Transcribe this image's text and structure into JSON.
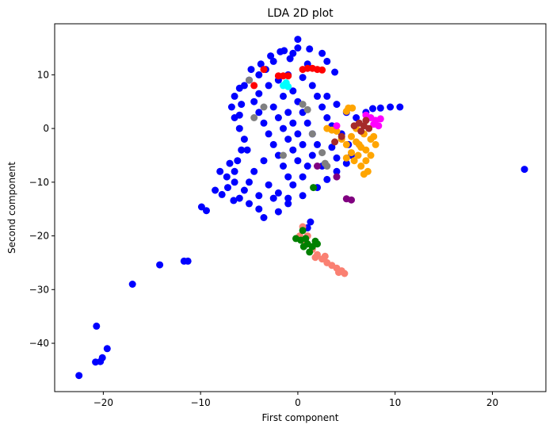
{
  "chart_data": {
    "type": "scatter",
    "title": "LDA 2D plot",
    "xlabel": "First component",
    "ylabel": "Second component",
    "xlim": [
      -25,
      25.5
    ],
    "ylim": [
      -49,
      19.5
    ],
    "xticks": [
      -20,
      -10,
      0,
      10,
      20
    ],
    "xtick_labels": [
      "−20",
      "−10",
      "0",
      "10",
      "20"
    ],
    "yticks": [
      -40,
      -30,
      -20,
      -10,
      0,
      10
    ],
    "ytick_labels": [
      "−40",
      "−30",
      "−20",
      "−10",
      "0",
      "10"
    ],
    "grid": false,
    "legend": "none",
    "series": [
      {
        "color": "#0000ff",
        "points": [
          [
            -22.5,
            -46.0
          ],
          [
            -20.8,
            -43.5
          ],
          [
            -20.3,
            -43.4
          ],
          [
            -20.1,
            -42.7
          ],
          [
            -19.6,
            -41.0
          ],
          [
            -20.7,
            -36.8
          ],
          [
            -17.0,
            -29.0
          ],
          [
            -14.2,
            -25.4
          ],
          [
            -11.7,
            -24.7
          ],
          [
            -11.3,
            -24.7
          ],
          [
            -9.9,
            -14.6
          ],
          [
            -9.4,
            -15.3
          ],
          [
            -8.5,
            -11.5
          ],
          [
            -7.8,
            -12.3
          ],
          [
            -7.2,
            -11.0
          ],
          [
            -6.6,
            -13.4
          ],
          [
            -6.0,
            -13.0
          ],
          [
            -5.0,
            -14.0
          ],
          [
            -4.0,
            -15.0
          ],
          [
            -3.5,
            -16.6
          ],
          [
            -2.0,
            -15.5
          ],
          [
            -1.0,
            -14.0
          ],
          [
            1.3,
            -17.4
          ],
          [
            1.0,
            -18.5
          ],
          [
            23.3,
            -7.6
          ],
          [
            10.5,
            4.0
          ],
          [
            9.5,
            4.0
          ],
          [
            8.5,
            3.8
          ],
          [
            7.7,
            3.7
          ],
          [
            0.0,
            16.6
          ],
          [
            0.0,
            15.0
          ],
          [
            -0.5,
            14.0
          ],
          [
            1.2,
            14.8
          ],
          [
            -1.4,
            14.5
          ],
          [
            2.5,
            14.0
          ],
          [
            -2.5,
            12.5
          ],
          [
            -3.3,
            11.0
          ],
          [
            -4.0,
            10.0
          ],
          [
            -5.0,
            9.0
          ],
          [
            -6.0,
            7.5
          ],
          [
            -6.5,
            6.0
          ],
          [
            -6.8,
            4.0
          ],
          [
            -6.5,
            2.0
          ],
          [
            -6.0,
            0.0
          ],
          [
            -5.5,
            -2.0
          ],
          [
            -5.2,
            -4.0
          ],
          [
            -6.2,
            -6.0
          ],
          [
            -6.5,
            -8.0
          ],
          [
            -6.5,
            -10.0
          ],
          [
            -5.5,
            -11.5
          ],
          [
            -4.0,
            -12.5
          ],
          [
            -2.5,
            -13.0
          ],
          [
            -1.0,
            -13.0
          ],
          [
            0.5,
            -12.5
          ],
          [
            2.0,
            -11.0
          ],
          [
            3.0,
            -9.5
          ],
          [
            4.0,
            -8.0
          ],
          [
            5.0,
            -6.5
          ],
          [
            5.5,
            -5.0
          ],
          [
            5.2,
            -3.0
          ],
          [
            4.5,
            -1.0
          ],
          [
            3.5,
            0.5
          ],
          [
            3.0,
            2.0
          ],
          [
            2.5,
            4.0
          ],
          [
            2.0,
            6.0
          ],
          [
            1.5,
            8.0
          ],
          [
            0.5,
            9.5
          ],
          [
            -1.0,
            10.0
          ],
          [
            -2.0,
            9.0
          ],
          [
            -3.0,
            8.0
          ],
          [
            -4.0,
            6.5
          ],
          [
            -4.5,
            5.0
          ],
          [
            -4.0,
            3.0
          ],
          [
            -3.5,
            1.0
          ],
          [
            -3.0,
            -1.0
          ],
          [
            -2.5,
            -3.0
          ],
          [
            -2.0,
            -5.0
          ],
          [
            -1.5,
            -7.0
          ],
          [
            -1.0,
            -9.0
          ],
          [
            -0.5,
            -10.5
          ],
          [
            0.5,
            -9.0
          ],
          [
            1.0,
            -7.0
          ],
          [
            1.5,
            -5.0
          ],
          [
            2.0,
            -3.0
          ],
          [
            1.5,
            -1.0
          ],
          [
            1.0,
            1.0
          ],
          [
            0.5,
            3.0
          ],
          [
            0.0,
            5.0
          ],
          [
            -0.5,
            7.0
          ],
          [
            -1.5,
            6.0
          ],
          [
            -2.5,
            4.0
          ],
          [
            -2.0,
            2.0
          ],
          [
            -1.5,
            0.0
          ],
          [
            -1.0,
            -2.0
          ],
          [
            -0.5,
            -4.0
          ],
          [
            0.0,
            -6.0
          ],
          [
            0.5,
            -3.0
          ],
          [
            0.0,
            -1.0
          ],
          [
            -0.5,
            1.0
          ],
          [
            -1.0,
            3.0
          ],
          [
            -3.5,
            -6.0
          ],
          [
            -4.5,
            -8.0
          ],
          [
            -5.0,
            -10.0
          ],
          [
            -3.0,
            -10.5
          ],
          [
            -2.0,
            -12.0
          ],
          [
            3.5,
            -3.5
          ],
          [
            4.0,
            -5.5
          ],
          [
            2.5,
            -7.0
          ],
          [
            3.0,
            6.0
          ],
          [
            4.0,
            4.5
          ],
          [
            5.0,
            3.0
          ],
          [
            6.0,
            2.0
          ],
          [
            7.0,
            3.0
          ],
          [
            -5.5,
            8.0
          ],
          [
            -4.8,
            11.0
          ],
          [
            -3.8,
            12.0
          ],
          [
            -2.8,
            13.5
          ],
          [
            -1.8,
            14.3
          ],
          [
            -0.8,
            13.0
          ],
          [
            3.8,
            10.5
          ],
          [
            3.0,
            12.5
          ],
          [
            1.0,
            12.0
          ],
          [
            -5.8,
            4.5
          ],
          [
            -5.8,
            -4.0
          ],
          [
            -7.0,
            -6.5
          ],
          [
            -7.3,
            -9.0
          ],
          [
            -8.0,
            -8.0
          ],
          [
            -6.0,
            2.5
          ]
        ]
      },
      {
        "color": "#ffa500",
        "points": [
          [
            5.5,
            -1.5
          ],
          [
            6.0,
            -2.5
          ],
          [
            6.5,
            -3.5
          ],
          [
            7.0,
            -4.0
          ],
          [
            7.5,
            -2.0
          ],
          [
            6.8,
            -1.0
          ],
          [
            6.2,
            -5.0
          ],
          [
            5.8,
            -6.0
          ],
          [
            6.5,
            -7.0
          ],
          [
            7.0,
            -6.0
          ],
          [
            7.5,
            -5.0
          ],
          [
            5.5,
            -4.5
          ],
          [
            5.0,
            -3.0
          ],
          [
            4.5,
            -2.0
          ],
          [
            4.0,
            -0.5
          ],
          [
            3.5,
            -0.3
          ],
          [
            7.2,
            -8.0
          ],
          [
            6.8,
            -8.5
          ],
          [
            8.0,
            -3.0
          ],
          [
            7.8,
            -1.5
          ],
          [
            6.0,
            0.0
          ],
          [
            5.2,
            3.8
          ],
          [
            5.6,
            3.8
          ],
          [
            5.0,
            3.2
          ],
          [
            6.3,
            -3.0
          ],
          [
            5.0,
            -5.5
          ],
          [
            3.0,
            0.0
          ]
        ]
      },
      {
        "color": "#ff00ff",
        "points": [
          [
            7.5,
            2.0
          ],
          [
            8.0,
            1.5
          ],
          [
            8.3,
            0.5
          ],
          [
            7.8,
            0.8
          ],
          [
            7.0,
            2.5
          ],
          [
            8.5,
            1.8
          ],
          [
            4.0,
            0.5
          ]
        ]
      },
      {
        "color": "#a52a2a",
        "points": [
          [
            6.3,
            1.0
          ],
          [
            6.8,
            0.5
          ],
          [
            7.3,
            0.0
          ],
          [
            6.5,
            -0.5
          ],
          [
            5.8,
            0.5
          ],
          [
            7.0,
            1.5
          ],
          [
            4.5,
            -1.5
          ],
          [
            3.8,
            -2.5
          ]
        ]
      },
      {
        "color": "#800080",
        "points": [
          [
            5.5,
            -13.3
          ],
          [
            5.0,
            -13.1
          ],
          [
            4.0,
            -9.0
          ],
          [
            2.0,
            -7.0
          ]
        ]
      },
      {
        "color": "#fa8072",
        "points": [
          [
            0.5,
            -18.3
          ],
          [
            1.0,
            -20.0
          ],
          [
            1.5,
            -22.5
          ],
          [
            2.0,
            -23.5
          ],
          [
            2.5,
            -24.3
          ],
          [
            3.0,
            -25.0
          ],
          [
            3.5,
            -25.5
          ],
          [
            4.0,
            -26.0
          ],
          [
            4.5,
            -26.5
          ],
          [
            4.8,
            -27.0
          ],
          [
            4.2,
            -26.8
          ],
          [
            2.8,
            -23.8
          ],
          [
            1.8,
            -24.0
          ],
          [
            0.8,
            -21.0
          ],
          [
            0.2,
            -20.0
          ]
        ]
      },
      {
        "color": "#008000",
        "points": [
          [
            0.5,
            -19.0
          ],
          [
            0.8,
            -20.5
          ],
          [
            1.0,
            -21.5
          ],
          [
            1.5,
            -22.0
          ],
          [
            0.3,
            -20.8
          ],
          [
            1.8,
            -21.0
          ],
          [
            1.2,
            -23.0
          ],
          [
            0.6,
            -22.0
          ],
          [
            -0.2,
            -20.5
          ],
          [
            1.6,
            -11.0
          ],
          [
            2.0,
            -21.5
          ]
        ]
      },
      {
        "color": "#ff0000",
        "points": [
          [
            1.0,
            11.2
          ],
          [
            1.5,
            11.2
          ],
          [
            2.0,
            11.0
          ],
          [
            2.5,
            10.9
          ],
          [
            -1.5,
            9.8
          ],
          [
            -2.0,
            9.8
          ],
          [
            -1.0,
            9.8
          ],
          [
            -3.5,
            11.0
          ],
          [
            0.5,
            11.0
          ],
          [
            -4.5,
            8.0
          ]
        ]
      },
      {
        "color": "#00ffff",
        "points": [
          [
            -1.2,
            8.5
          ],
          [
            -1.0,
            7.8
          ],
          [
            -1.5,
            8.0
          ]
        ]
      },
      {
        "color": "#808080",
        "points": [
          [
            -5.0,
            9.0
          ],
          [
            0.5,
            4.5
          ],
          [
            1.0,
            3.5
          ],
          [
            -3.5,
            4.0
          ],
          [
            2.5,
            -4.5
          ],
          [
            -1.5,
            -5.0
          ],
          [
            2.8,
            -6.5
          ],
          [
            -4.5,
            2.0
          ],
          [
            1.5,
            -1.0
          ],
          [
            3.0,
            -7.0
          ]
        ]
      }
    ]
  }
}
